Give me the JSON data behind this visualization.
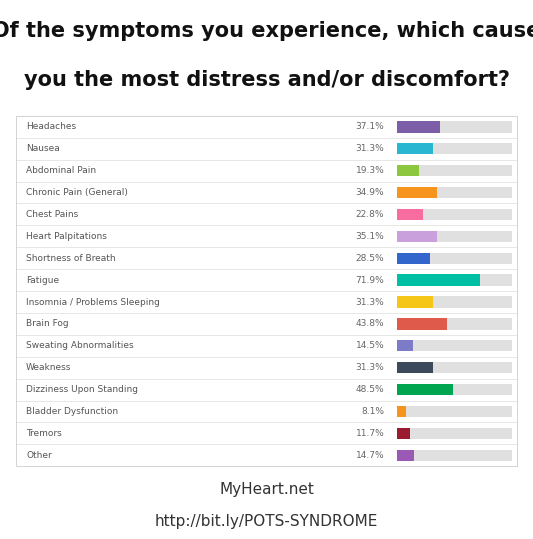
{
  "title_line1": "Of the symptoms you experience, which cause",
  "title_line2": "you the most distress and/or discomfort?",
  "footer_line1": "MyHeart.net",
  "footer_line2": "http://bit.ly/POTS-SYNDROME",
  "categories": [
    "Headaches",
    "Nausea",
    "Abdominal Pain",
    "Chronic Pain (General)",
    "Chest Pains",
    "Heart Palpitations",
    "Shortness of Breath",
    "Fatigue",
    "Insomnia / Problems Sleeping",
    "Brain Fog",
    "Sweating Abnormalities",
    "Weakness",
    "Dizziness Upon Standing",
    "Bladder Dysfunction",
    "Tremors",
    "Other"
  ],
  "values": [
    37.1,
    31.3,
    19.3,
    34.9,
    22.8,
    35.1,
    28.5,
    71.9,
    31.3,
    43.8,
    14.5,
    31.3,
    48.5,
    8.1,
    11.7,
    14.7
  ],
  "colors": [
    "#7B5EA7",
    "#29B6D0",
    "#8DC63F",
    "#F7941D",
    "#F76DA0",
    "#C9A0DC",
    "#3366CC",
    "#00BFA5",
    "#F5C518",
    "#E05A4B",
    "#7B7BC8",
    "#3D4A5C",
    "#00A550",
    "#F7941D",
    "#9B1B30",
    "#9B59B6"
  ],
  "bg_color": "#FFFFFF",
  "bar_bg_color": "#E0E0E0",
  "label_color": "#555555",
  "value_color": "#666666",
  "title_color": "#111111",
  "footer_color": "#333333",
  "separator_color": "#DDDDDD",
  "border_color": "#CCCCCC",
  "title_fontsize": 15,
  "label_fontsize": 6.5,
  "value_fontsize": 6.5,
  "footer_fontsize": 11
}
